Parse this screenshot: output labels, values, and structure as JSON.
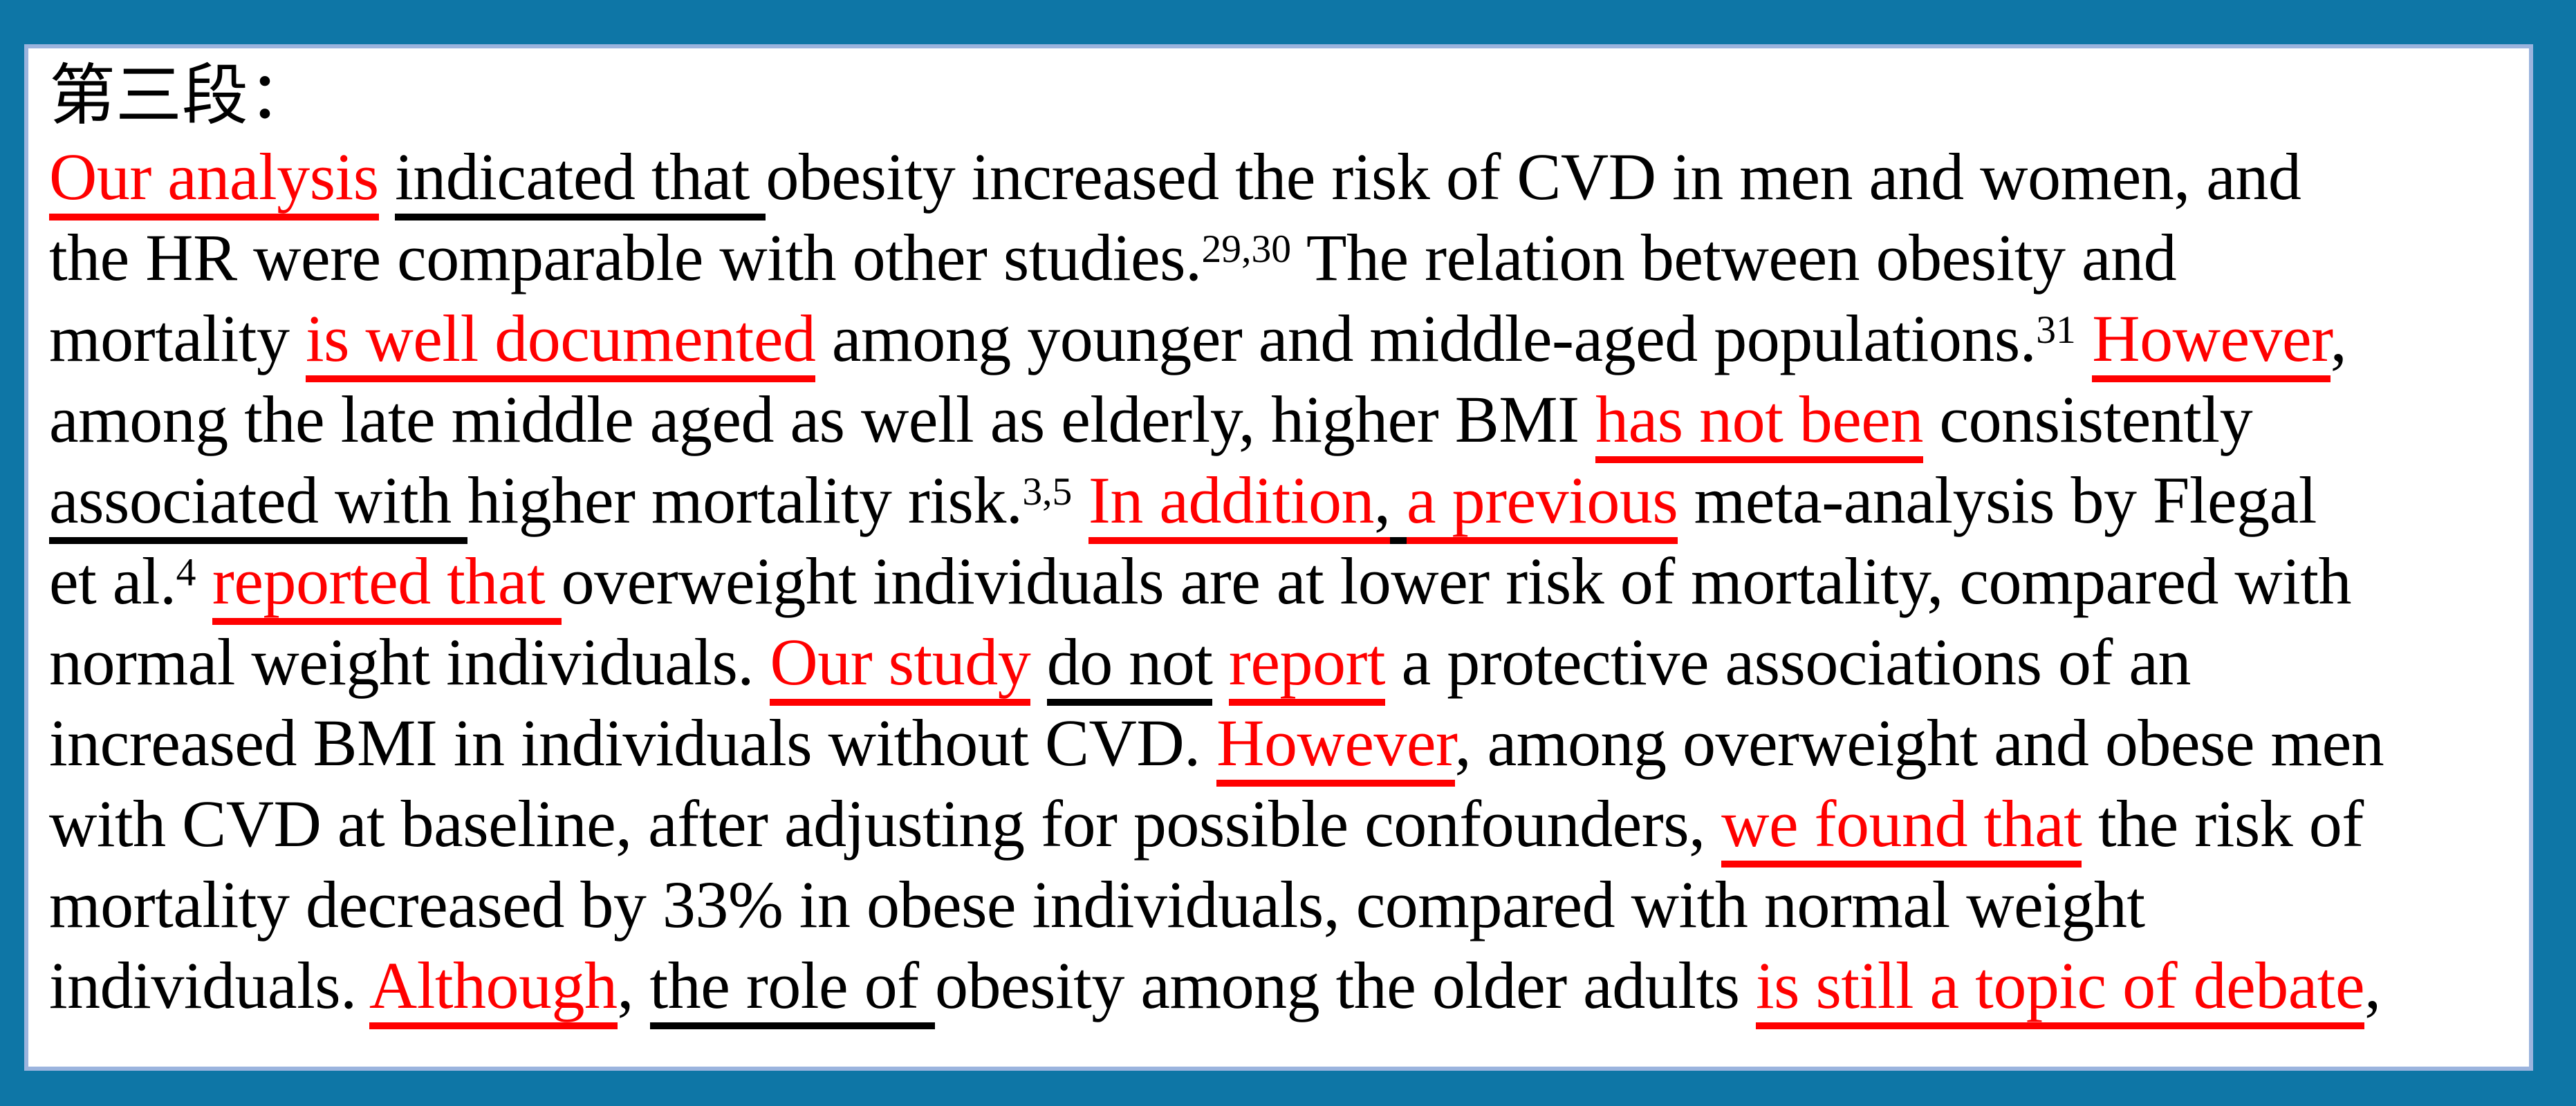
{
  "colors": {
    "frame_blue": "#0E76A6",
    "inner_border": "#9BB4DE",
    "page_white": "#FFFFFF",
    "accent_red": "#FF0000",
    "text_black": "#000000"
  },
  "header": {
    "text": "第三段："
  },
  "paragraph": {
    "lines": [
      [
        {
          "t": "Our analysis",
          "c": "red",
          "u": "red"
        },
        {
          "t": " "
        },
        {
          "t": "indicated that ",
          "u": "black"
        },
        {
          "t": "obesity increased the risk of CVD in men and women, and"
        }
      ],
      [
        {
          "t": "the HR were comparable with other studies."
        },
        {
          "t": "29,30",
          "sup": true
        },
        {
          "t": " The relation between obesity and"
        }
      ],
      [
        {
          "t": "mortality "
        },
        {
          "t": "is well documented",
          "c": "red",
          "u": "red"
        },
        {
          "t": " among younger and middle-aged populations."
        },
        {
          "t": "31",
          "sup": true
        },
        {
          "t": " "
        },
        {
          "t": "However",
          "c": "red",
          "u": "red"
        },
        {
          "t": ","
        }
      ],
      [
        {
          "t": "among the late middle aged as well as elderly, higher BMI "
        },
        {
          "t": "has not been",
          "c": "red",
          "u": "red"
        },
        {
          "t": " consistently"
        }
      ],
      [
        {
          "t": "associated with ",
          "u": "black"
        },
        {
          "t": "higher mortality risk."
        },
        {
          "t": "3,5",
          "sup": true
        },
        {
          "t": " "
        },
        {
          "t": "In addition",
          "c": "red",
          "u": "red"
        },
        {
          "t": ",",
          "u": "red"
        },
        {
          "t": " ",
          "u": "black"
        },
        {
          "t": "a previous",
          "c": "red",
          "u": "red"
        },
        {
          "t": " meta-analysis by Flegal"
        }
      ],
      [
        {
          "t": "et al."
        },
        {
          "t": "4",
          "sup": true
        },
        {
          "t": " "
        },
        {
          "t": "reported that ",
          "c": "red",
          "u": "red"
        },
        {
          "t": "overweight individuals are at lower risk of mortality, compared with"
        }
      ],
      [
        {
          "t": "normal weight individuals. "
        },
        {
          "t": "Our study",
          "c": "red",
          "u": "red"
        },
        {
          "t": " "
        },
        {
          "t": "do not",
          "u": "black"
        },
        {
          "t": " "
        },
        {
          "t": "report",
          "c": "red",
          "u": "red"
        },
        {
          "t": " a protective associations of an"
        }
      ],
      [
        {
          "t": "increased BMI in individuals without CVD. "
        },
        {
          "t": "However",
          "c": "red",
          "u": "red"
        },
        {
          "t": ", among overweight and obese men"
        }
      ],
      [
        {
          "t": "with CVD at baseline, after adjusting for possible confounders, "
        },
        {
          "t": "we found that",
          "c": "red",
          "u": "red"
        },
        {
          "t": " the risk of"
        }
      ],
      [
        {
          "t": "mortality decreased by 33% in obese individuals, compared with normal weight"
        }
      ],
      [
        {
          "t": "individuals. "
        },
        {
          "t": "Although",
          "c": "red",
          "u": "red"
        },
        {
          "t": ", "
        },
        {
          "t": "the role of ",
          "u": "black"
        },
        {
          "t": "obesity among the older adults "
        },
        {
          "t": "is still a topic of debate",
          "c": "red",
          "u": "red"
        },
        {
          "t": ","
        }
      ]
    ]
  }
}
